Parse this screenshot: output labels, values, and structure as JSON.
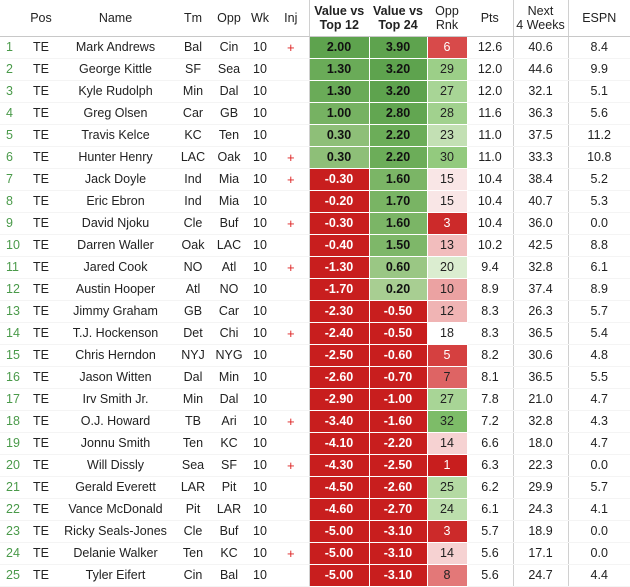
{
  "headers": {
    "pos": "Pos",
    "name": "Name",
    "tm": "Tm",
    "opp": "Opp",
    "wk": "Wk",
    "inj": "Inj",
    "v12_line1": "Value vs",
    "v12_line2": "Top 12",
    "v24_line1": "Value vs",
    "v24_line2": "Top 24",
    "rnk_line1": "Opp",
    "rnk_line2": "Rnk",
    "pts": "Pts",
    "next_line1": "Next",
    "next_line2": "4 Weeks",
    "espn": "ESPN"
  },
  "colors": {
    "strong_green": "#5ea34e",
    "mid_green": "#7dbc68",
    "light_green": "#c3e0b4",
    "pale_green": "#def0d4",
    "strong_red": "#c81e1e",
    "mid_red": "#d84a4a",
    "light_red": "#eba2a2",
    "pale_red": "#f7d3d3",
    "injury": "#dd2222",
    "index": "#4a9a4a"
  },
  "rows": [
    {
      "idx": "1",
      "pos": "TE",
      "name": "Mark Andrews",
      "tm": "Bal",
      "opp": "Cin",
      "wk": "10",
      "inj": "+",
      "v12": "2.00",
      "v24": "3.90",
      "rnk": "6",
      "pts": "12.6",
      "next": "40.6",
      "espn": "8.4",
      "v12c": "#5ea34e",
      "v24c": "#5ea34e",
      "rnkc": "#d84a4a"
    },
    {
      "idx": "2",
      "pos": "TE",
      "name": "George Kittle",
      "tm": "SF",
      "opp": "Sea",
      "wk": "10",
      "inj": "",
      "v12": "1.30",
      "v24": "3.20",
      "rnk": "29",
      "pts": "12.0",
      "next": "44.6",
      "espn": "9.9",
      "v12c": "#6aab58",
      "v24c": "#5ea34e",
      "rnkc": "#9ccf88"
    },
    {
      "idx": "3",
      "pos": "TE",
      "name": "Kyle Rudolph",
      "tm": "Min",
      "opp": "Dal",
      "wk": "10",
      "inj": "",
      "v12": "1.30",
      "v24": "3.20",
      "rnk": "27",
      "pts": "12.0",
      "next": "32.1",
      "espn": "5.1",
      "v12c": "#6aab58",
      "v24c": "#5ea34e",
      "rnkc": "#a8d596"
    },
    {
      "idx": "4",
      "pos": "TE",
      "name": "Greg Olsen",
      "tm": "Car",
      "opp": "GB",
      "wk": "10",
      "inj": "",
      "v12": "1.00",
      "v24": "2.80",
      "rnk": "28",
      "pts": "11.6",
      "next": "36.3",
      "espn": "5.6",
      "v12c": "#76b262",
      "v24c": "#62a651",
      "rnkc": "#a1d18e"
    },
    {
      "idx": "5",
      "pos": "TE",
      "name": "Travis Kelce",
      "tm": "KC",
      "opp": "Ten",
      "wk": "10",
      "inj": "",
      "v12": "0.30",
      "v24": "2.20",
      "rnk": "23",
      "pts": "11.0",
      "next": "37.5",
      "espn": "11.2",
      "v12c": "#8ebf78",
      "v24c": "#6cad59",
      "rnkc": "#c3e0b4"
    },
    {
      "idx": "6",
      "pos": "TE",
      "name": "Hunter Henry",
      "tm": "LAC",
      "opp": "Oak",
      "wk": "10",
      "inj": "+",
      "v12": "0.30",
      "v24": "2.20",
      "rnk": "30",
      "pts": "11.0",
      "next": "33.3",
      "espn": "10.8",
      "v12c": "#8ebf78",
      "v24c": "#6cad59",
      "rnkc": "#93ca7e"
    },
    {
      "idx": "7",
      "pos": "TE",
      "name": "Jack Doyle",
      "tm": "Ind",
      "opp": "Mia",
      "wk": "10",
      "inj": "+",
      "v12": "-0.30",
      "v24": "1.60",
      "rnk": "15",
      "pts": "10.4",
      "next": "38.4",
      "espn": "5.2",
      "v12c": "#c81e1e",
      "v24c": "#7bb566",
      "rnkc": "#f9e6e6"
    },
    {
      "idx": "8",
      "pos": "TE",
      "name": "Eric Ebron",
      "tm": "Ind",
      "opp": "Mia",
      "wk": "10",
      "inj": "",
      "v12": "-0.20",
      "v24": "1.70",
      "rnk": "15",
      "pts": "10.4",
      "next": "40.7",
      "espn": "5.3",
      "v12c": "#c81e1e",
      "v24c": "#79b464",
      "rnkc": "#f9e6e6"
    },
    {
      "idx": "9",
      "pos": "TE",
      "name": "David Njoku",
      "tm": "Cle",
      "opp": "Buf",
      "wk": "10",
      "inj": "+",
      "v12": "-0.30",
      "v24": "1.60",
      "rnk": "3",
      "pts": "10.4",
      "next": "36.0",
      "espn": "0.0",
      "v12c": "#c81e1e",
      "v24c": "#7bb566",
      "rnkc": "#cc2a2a"
    },
    {
      "idx": "10",
      "pos": "TE",
      "name": "Darren Waller",
      "tm": "Oak",
      "opp": "LAC",
      "wk": "10",
      "inj": "",
      "v12": "-0.40",
      "v24": "1.50",
      "rnk": "13",
      "pts": "10.2",
      "next": "42.5",
      "espn": "8.8",
      "v12c": "#c81e1e",
      "v24c": "#7eb769",
      "rnkc": "#f2bdbd"
    },
    {
      "idx": "11",
      "pos": "TE",
      "name": "Jared Cook",
      "tm": "NO",
      "opp": "Atl",
      "wk": "10",
      "inj": "+",
      "v12": "-1.30",
      "v24": "0.60",
      "rnk": "20",
      "pts": "9.4",
      "next": "32.8",
      "espn": "6.1",
      "v12c": "#c81e1e",
      "v24c": "#9ac784",
      "rnkc": "#dbedd0"
    },
    {
      "idx": "12",
      "pos": "TE",
      "name": "Austin Hooper",
      "tm": "Atl",
      "opp": "NO",
      "wk": "10",
      "inj": "",
      "v12": "-1.70",
      "v24": "0.20",
      "rnk": "10",
      "pts": "8.9",
      "next": "37.4",
      "espn": "8.9",
      "v12c": "#c81e1e",
      "v24c": "#a8ce92",
      "rnkc": "#eba2a2"
    },
    {
      "idx": "13",
      "pos": "TE",
      "name": "Jimmy Graham",
      "tm": "GB",
      "opp": "Car",
      "wk": "10",
      "inj": "",
      "v12": "-2.30",
      "v24": "-0.50",
      "rnk": "12",
      "pts": "8.3",
      "next": "26.3",
      "espn": "5.7",
      "v12c": "#c81e1e",
      "v24c": "#c81e1e",
      "rnkc": "#f0b4b4"
    },
    {
      "idx": "14",
      "pos": "TE",
      "name": "T.J. Hockenson",
      "tm": "Det",
      "opp": "Chi",
      "wk": "10",
      "inj": "+",
      "v12": "-2.40",
      "v24": "-0.50",
      "rnk": "18",
      "pts": "8.3",
      "next": "36.5",
      "espn": "5.4",
      "v12c": "#c81e1e",
      "v24c": "#c81e1e",
      "rnkc": "#ffffff"
    },
    {
      "idx": "15",
      "pos": "TE",
      "name": "Chris Herndon",
      "tm": "NYJ",
      "opp": "NYG",
      "wk": "10",
      "inj": "",
      "v12": "-2.50",
      "v24": "-0.60",
      "rnk": "5",
      "pts": "8.2",
      "next": "30.6",
      "espn": "4.8",
      "v12c": "#c81e1e",
      "v24c": "#c81e1e",
      "rnkc": "#d54040"
    },
    {
      "idx": "16",
      "pos": "TE",
      "name": "Jason Witten",
      "tm": "Dal",
      "opp": "Min",
      "wk": "10",
      "inj": "",
      "v12": "-2.60",
      "v24": "-0.70",
      "rnk": "7",
      "pts": "8.1",
      "next": "36.5",
      "espn": "5.5",
      "v12c": "#c81e1e",
      "v24c": "#c81e1e",
      "rnkc": "#de6464"
    },
    {
      "idx": "17",
      "pos": "TE",
      "name": "Irv Smith Jr.",
      "tm": "Min",
      "opp": "Dal",
      "wk": "10",
      "inj": "",
      "v12": "-2.90",
      "v24": "-1.00",
      "rnk": "27",
      "pts": "7.8",
      "next": "21.0",
      "espn": "4.7",
      "v12c": "#c81e1e",
      "v24c": "#c81e1e",
      "rnkc": "#a8d596"
    },
    {
      "idx": "18",
      "pos": "TE",
      "name": "O.J. Howard",
      "tm": "TB",
      "opp": "Ari",
      "wk": "10",
      "inj": "+",
      "v12": "-3.40",
      "v24": "-1.60",
      "rnk": "32",
      "pts": "7.2",
      "next": "32.8",
      "espn": "4.3",
      "v12c": "#c81e1e",
      "v24c": "#c81e1e",
      "rnkc": "#7dbc68"
    },
    {
      "idx": "19",
      "pos": "TE",
      "name": "Jonnu Smith",
      "tm": "Ten",
      "opp": "KC",
      "wk": "10",
      "inj": "",
      "v12": "-4.10",
      "v24": "-2.20",
      "rnk": "14",
      "pts": "6.6",
      "next": "18.0",
      "espn": "4.7",
      "v12c": "#c81e1e",
      "v24c": "#c81e1e",
      "rnkc": "#f6d2d2"
    },
    {
      "idx": "20",
      "pos": "TE",
      "name": "Will Dissly",
      "tm": "Sea",
      "opp": "SF",
      "wk": "10",
      "inj": "+",
      "v12": "-4.30",
      "v24": "-2.50",
      "rnk": "1",
      "pts": "6.3",
      "next": "22.3",
      "espn": "0.0",
      "v12c": "#c81e1e",
      "v24c": "#c81e1e",
      "rnkc": "#c81e1e"
    },
    {
      "idx": "21",
      "pos": "TE",
      "name": "Gerald Everett",
      "tm": "LAR",
      "opp": "Pit",
      "wk": "10",
      "inj": "",
      "v12": "-4.50",
      "v24": "-2.60",
      "rnk": "25",
      "pts": "6.2",
      "next": "29.9",
      "espn": "5.7",
      "v12c": "#c81e1e",
      "v24c": "#c81e1e",
      "rnkc": "#b4daa3"
    },
    {
      "idx": "22",
      "pos": "TE",
      "name": "Vance McDonald",
      "tm": "Pit",
      "opp": "LAR",
      "wk": "10",
      "inj": "",
      "v12": "-4.60",
      "v24": "-2.70",
      "rnk": "24",
      "pts": "6.1",
      "next": "24.3",
      "espn": "4.1",
      "v12c": "#c81e1e",
      "v24c": "#c81e1e",
      "rnkc": "#bcdeac"
    },
    {
      "idx": "23",
      "pos": "TE",
      "name": "Ricky Seals-Jones",
      "tm": "Cle",
      "opp": "Buf",
      "wk": "10",
      "inj": "",
      "v12": "-5.00",
      "v24": "-3.10",
      "rnk": "3",
      "pts": "5.7",
      "next": "18.9",
      "espn": "0.0",
      "v12c": "#c81e1e",
      "v24c": "#c81e1e",
      "rnkc": "#cc2a2a"
    },
    {
      "idx": "24",
      "pos": "TE",
      "name": "Delanie Walker",
      "tm": "Ten",
      "opp": "KC",
      "wk": "10",
      "inj": "+",
      "v12": "-5.00",
      "v24": "-3.10",
      "rnk": "14",
      "pts": "5.6",
      "next": "17.1",
      "espn": "0.0",
      "v12c": "#c81e1e",
      "v24c": "#c81e1e",
      "rnkc": "#f6d2d2"
    },
    {
      "idx": "25",
      "pos": "TE",
      "name": "Tyler Eifert",
      "tm": "Cin",
      "opp": "Bal",
      "wk": "10",
      "inj": "",
      "v12": "-5.00",
      "v24": "-3.10",
      "rnk": "8",
      "pts": "5.6",
      "next": "24.7",
      "espn": "4.4",
      "v12c": "#c81e1e",
      "v24c": "#c81e1e",
      "rnkc": "#e37878"
    }
  ]
}
